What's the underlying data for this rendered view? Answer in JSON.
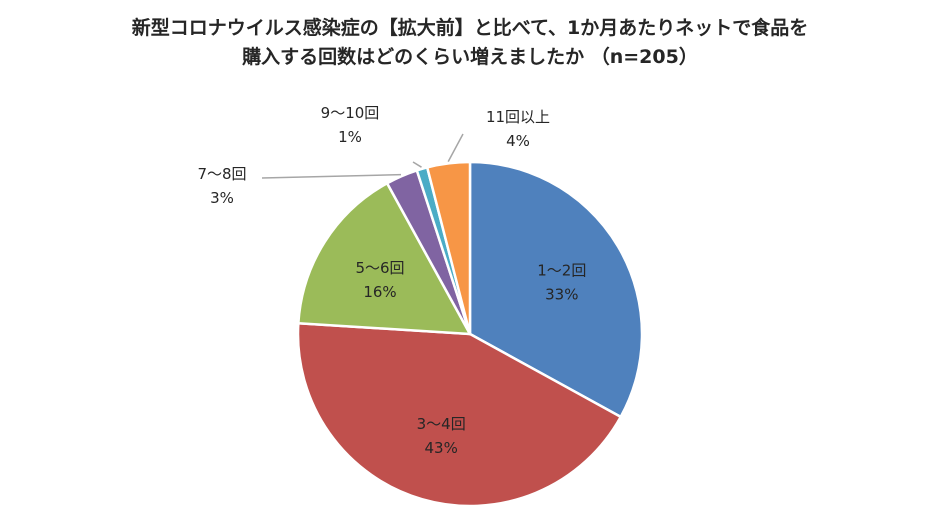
{
  "chart_data": {
    "type": "pie",
    "title": "新型コロナウイルス感染症の【拡大前】と比べて、1か月あたりネットで食品を",
    "subtitle": "購入する回数はどのくらい増えましたか （n=205）",
    "categories": [
      "1〜2回",
      "3〜4回",
      "5〜6回",
      "7〜8回",
      "9〜10回",
      "11回以上"
    ],
    "values": [
      33,
      43,
      16,
      3,
      1,
      4
    ],
    "value_labels": [
      "33%",
      "43%",
      "16%",
      "3%",
      "1%",
      "4%"
    ],
    "unit": "%",
    "start_angle": "12 o'clock",
    "direction": "clockwise",
    "legend": "none",
    "colors": [
      "#4f81bd",
      "#c0504d",
      "#9bbb59",
      "#8064a2",
      "#4bacc6",
      "#f79646"
    ]
  }
}
